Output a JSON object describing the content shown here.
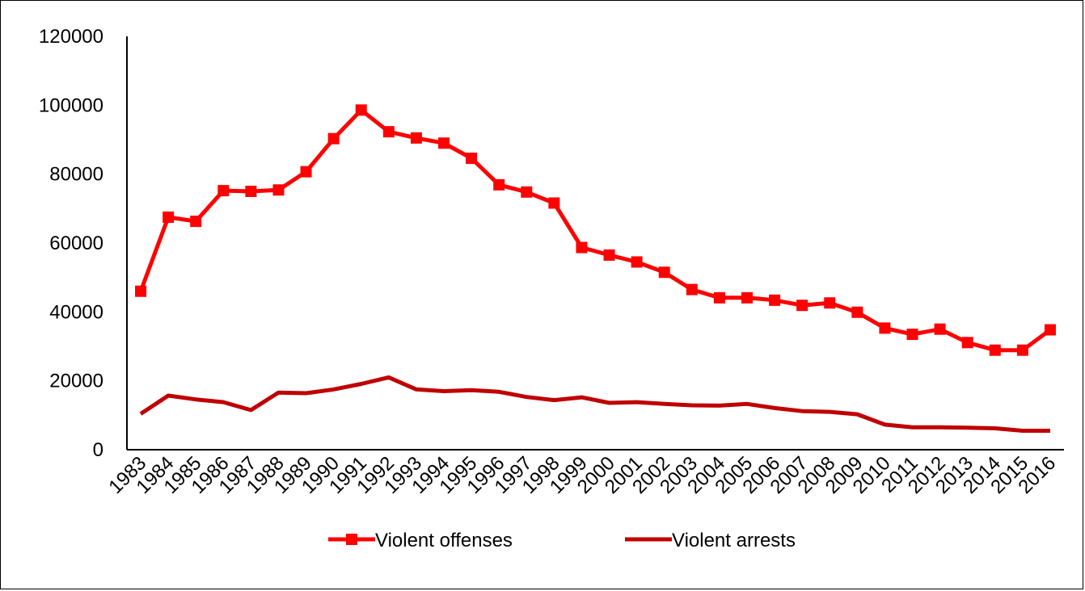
{
  "chart_data": {
    "type": "line",
    "title": "",
    "xlabel": "",
    "ylabel": "",
    "ylim": [
      0,
      120000
    ],
    "yticks": [
      0,
      20000,
      40000,
      60000,
      80000,
      100000,
      120000
    ],
    "grid": false,
    "legend_position": "bottom",
    "categories": [
      "1983",
      "1984",
      "1985",
      "1986",
      "1987",
      "1988",
      "1989",
      "1990",
      "1991",
      "1992",
      "1993",
      "1994",
      "1995",
      "1996",
      "1997",
      "1998",
      "1999",
      "2000",
      "2001",
      "2002",
      "2003",
      "2004",
      "2005",
      "2006",
      "2007",
      "2008",
      "2009",
      "2010",
      "2011",
      "2012",
      "2013",
      "2014",
      "2015",
      "2016"
    ],
    "series": [
      {
        "name": "Violent offenses",
        "color": "#ff0000",
        "marker": "square",
        "values": [
          46000,
          67500,
          66300,
          75200,
          75000,
          75400,
          80700,
          90300,
          98600,
          92300,
          90500,
          89000,
          84600,
          76900,
          74800,
          71600,
          58700,
          56500,
          54500,
          51500,
          46500,
          44100,
          44100,
          43400,
          41900,
          42600,
          39900,
          35300,
          33500,
          35000,
          31100,
          28900,
          28900,
          34800
        ]
      },
      {
        "name": "Violent arrests",
        "color": "#c00000",
        "marker": "none",
        "values": [
          10400,
          15700,
          14600,
          13800,
          11500,
          16600,
          16400,
          17500,
          19100,
          21000,
          17500,
          17000,
          17300,
          16800,
          15300,
          14400,
          15200,
          13600,
          13800,
          13300,
          12900,
          12800,
          13300,
          12100,
          11200,
          11000,
          10300,
          7300,
          6500,
          6500,
          6400,
          6200,
          5500,
          5500
        ]
      }
    ]
  }
}
